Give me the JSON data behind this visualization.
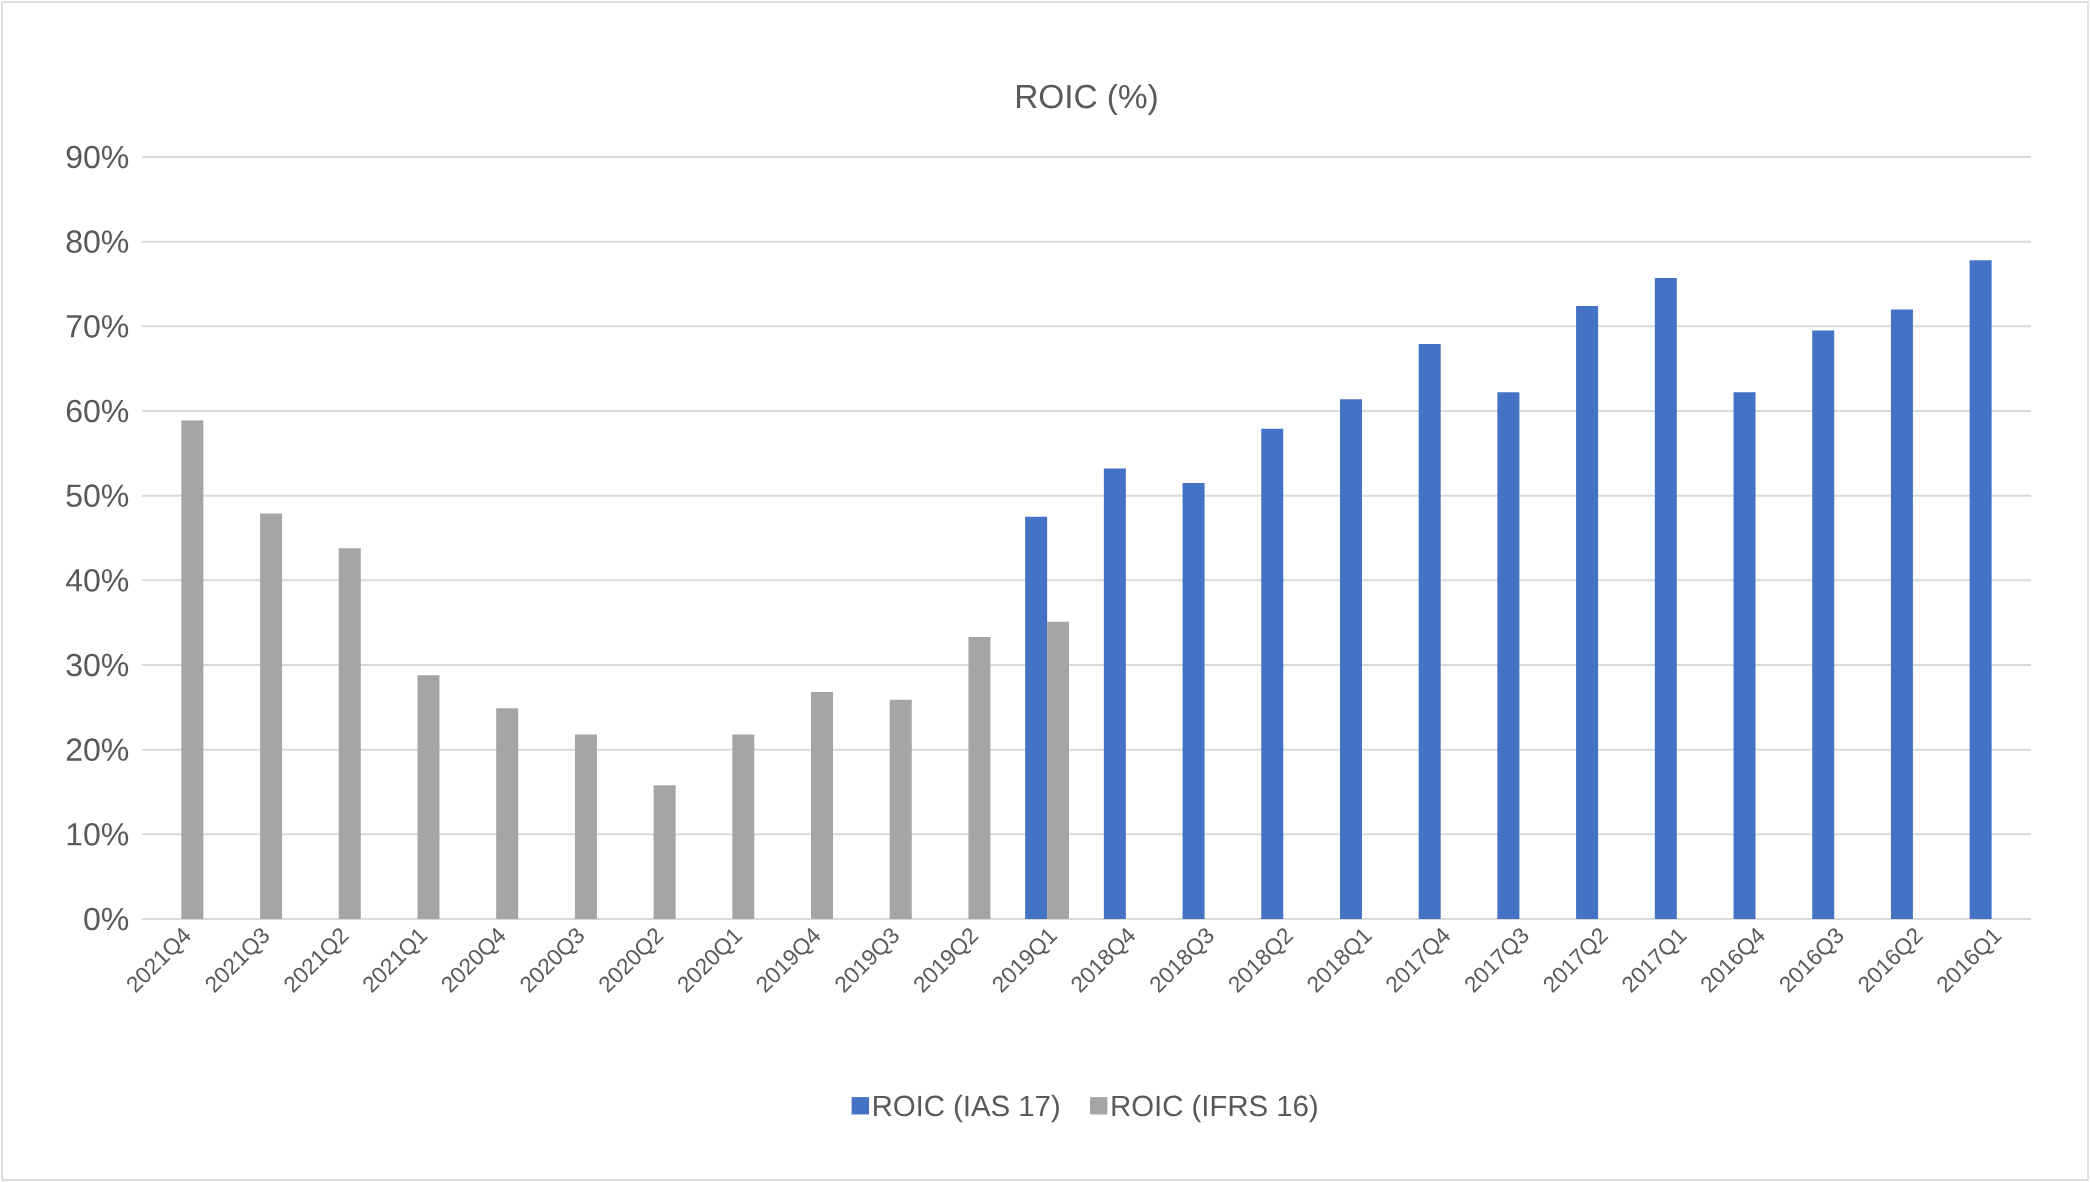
{
  "chart_data": {
    "type": "bar",
    "title": "ROIC (%)",
    "categories": [
      "2021Q4",
      "2021Q3",
      "2021Q2",
      "2021Q1",
      "2020Q4",
      "2020Q3",
      "2020Q2",
      "2020Q1",
      "2019Q4",
      "2019Q3",
      "2019Q2",
      "2019Q1",
      "2018Q4",
      "2018Q3",
      "2018Q2",
      "2018Q1",
      "2017Q4",
      "2017Q3",
      "2017Q2",
      "2017Q1",
      "2016Q4",
      "2016Q3",
      "2016Q2",
      "2016Q1"
    ],
    "series": [
      {
        "name": "ROIC (IAS 17)",
        "color": "#4472c4",
        "values": [
          null,
          null,
          null,
          null,
          null,
          null,
          null,
          null,
          null,
          null,
          null,
          47.5,
          53.2,
          51.5,
          57.9,
          61.4,
          67.9,
          62.2,
          72.4,
          75.7,
          62.2,
          69.5,
          72.0,
          77.8
        ]
      },
      {
        "name": "ROIC (IFRS 16)",
        "color": "#a5a5a5",
        "values": [
          58.9,
          47.9,
          43.8,
          28.8,
          24.9,
          21.8,
          15.8,
          21.8,
          26.8,
          25.9,
          33.3,
          35.1,
          null,
          null,
          null,
          null,
          null,
          null,
          null,
          null,
          null,
          null,
          null,
          null
        ]
      }
    ],
    "ylim": [
      0,
      90
    ],
    "yticks": [
      {
        "value": 0,
        "label": "0%"
      },
      {
        "value": 10,
        "label": "10%"
      },
      {
        "value": 20,
        "label": "20%"
      },
      {
        "value": 30,
        "label": "30%"
      },
      {
        "value": 40,
        "label": "40%"
      },
      {
        "value": 50,
        "label": "50%"
      },
      {
        "value": 60,
        "label": "60%"
      },
      {
        "value": 70,
        "label": "70%"
      },
      {
        "value": 80,
        "label": "80%"
      },
      {
        "value": 90,
        "label": "90%"
      }
    ],
    "grid": "y",
    "legend": "bottom"
  }
}
